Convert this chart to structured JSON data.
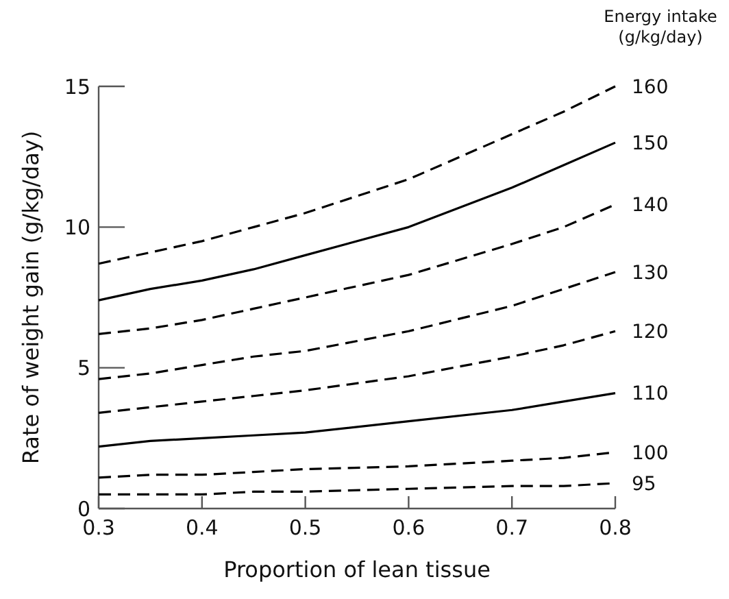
{
  "chart_data": {
    "type": "line",
    "xlabel": "Proportion of lean tissue",
    "ylabel": "Rate of weight gain (g/kg/day)",
    "legend_title": "Energy intake (g/kg/day)",
    "x": [
      0.3,
      0.35,
      0.4,
      0.45,
      0.5,
      0.6,
      0.7,
      0.75,
      0.8
    ],
    "xlim": [
      0.3,
      0.8
    ],
    "xticks": [
      0.3,
      0.4,
      0.5,
      0.6,
      0.7,
      0.8
    ],
    "ylim": [
      0,
      15
    ],
    "yticks": [
      0,
      5,
      10,
      15
    ],
    "grid": false,
    "marker": "none",
    "series": [
      {
        "name": "160",
        "color": "#000000",
        "line_style": "dashed",
        "values": [
          8.7,
          9.1,
          9.5,
          10.0,
          10.5,
          11.7,
          13.3,
          14.1,
          15.0
        ]
      },
      {
        "name": "150",
        "color": "#000000",
        "line_style": "solid",
        "values": [
          7.4,
          7.8,
          8.1,
          8.5,
          9.0,
          10.0,
          11.4,
          12.2,
          13.0
        ]
      },
      {
        "name": "140",
        "color": "#000000",
        "line_style": "dashed",
        "values": [
          6.2,
          6.4,
          6.7,
          7.1,
          7.5,
          8.3,
          9.4,
          10.0,
          10.8
        ]
      },
      {
        "name": "130",
        "color": "#000000",
        "line_style": "dashed",
        "values": [
          4.6,
          4.8,
          5.1,
          5.4,
          5.6,
          6.3,
          7.2,
          7.8,
          8.4
        ]
      },
      {
        "name": "120",
        "color": "#000000",
        "line_style": "dashed",
        "values": [
          3.4,
          3.6,
          3.8,
          4.0,
          4.2,
          4.7,
          5.4,
          5.8,
          6.3
        ]
      },
      {
        "name": "110",
        "color": "#000000",
        "line_style": "solid",
        "values": [
          2.2,
          2.4,
          2.5,
          2.6,
          2.7,
          3.1,
          3.5,
          3.8,
          4.1
        ]
      },
      {
        "name": "100",
        "color": "#000000",
        "line_style": "dashed",
        "values": [
          1.1,
          1.2,
          1.2,
          1.3,
          1.4,
          1.5,
          1.7,
          1.8,
          2.0
        ]
      },
      {
        "name": "95",
        "color": "#000000",
        "line_style": "dashed",
        "values": [
          0.5,
          0.5,
          0.5,
          0.6,
          0.6,
          0.7,
          0.8,
          0.8,
          0.9
        ]
      }
    ]
  }
}
